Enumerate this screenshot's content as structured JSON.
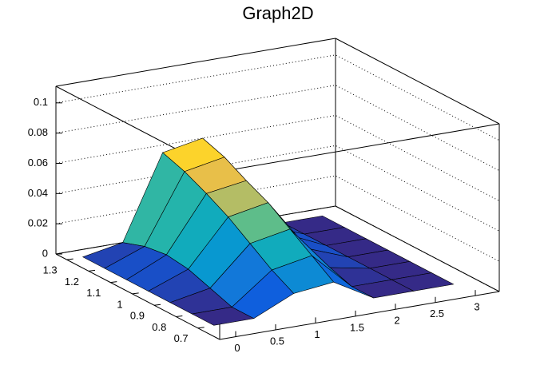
{
  "chart_data": {
    "type": "surface",
    "title": "Graph2D",
    "x": [
      0,
      0.5,
      1,
      1.5,
      2,
      2.5,
      3
    ],
    "y": [
      0.7,
      0.8,
      0.9,
      1,
      1.1,
      1.2,
      1.3
    ],
    "z": [
      [
        0,
        0,
        0.012,
        0.015,
        0,
        0,
        0
      ],
      [
        0,
        0,
        0.02,
        0.025,
        0,
        0,
        0
      ],
      [
        0,
        0.005,
        0.03,
        0.035,
        0.005,
        0,
        0
      ],
      [
        0,
        0.01,
        0.04,
        0.045,
        0.01,
        0,
        0
      ],
      [
        0,
        0.012,
        0.048,
        0.052,
        0.012,
        0,
        0
      ],
      [
        0,
        0.01,
        0.055,
        0.06,
        0.01,
        0,
        0
      ],
      [
        0,
        0.005,
        0.06,
        0.065,
        0.005,
        0,
        0
      ]
    ],
    "xlim": [
      -0.2,
      3.3
    ],
    "ylim": [
      0.6,
      1.35
    ],
    "zlim": [
      0,
      0.111
    ],
    "xticks": [
      0,
      0.5,
      1,
      1.5,
      2,
      2.5,
      3
    ],
    "yticks": [
      0.7,
      0.8,
      0.9,
      1,
      1.1,
      1.2,
      1.3
    ],
    "zticks": [
      0,
      0.02,
      0.04,
      0.06,
      0.08,
      0.1
    ],
    "grid": true
  }
}
